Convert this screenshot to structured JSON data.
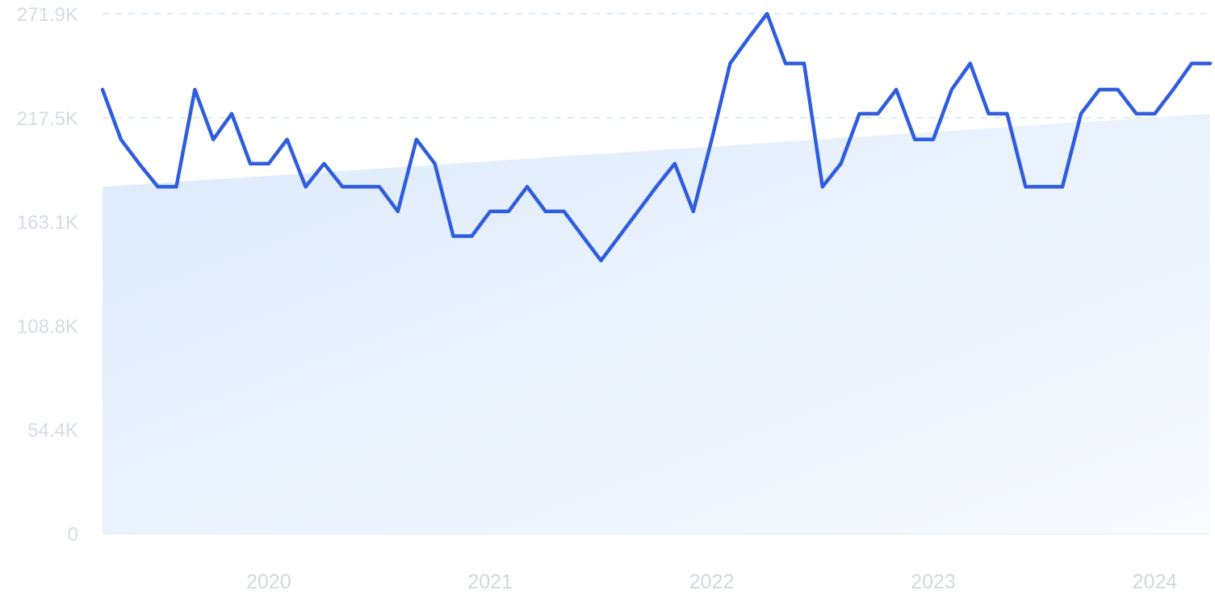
{
  "chart_data": {
    "type": "line",
    "ylim": [
      0,
      271900
    ],
    "y_ticks": [
      {
        "value": 0,
        "label": "0"
      },
      {
        "value": 54400,
        "label": "54.4K"
      },
      {
        "value": 108800,
        "label": "108.8K"
      },
      {
        "value": 163100,
        "label": "163.1K"
      },
      {
        "value": 217500,
        "label": "217.5K"
      },
      {
        "value": 271900,
        "label": "271.9K"
      }
    ],
    "x_ticks": [
      {
        "value": 2020.0,
        "label": "2020"
      },
      {
        "value": 2021.0,
        "label": "2021"
      },
      {
        "value": 2022.0,
        "label": "2022"
      },
      {
        "value": 2023.0,
        "label": "2023"
      },
      {
        "value": 2024.0,
        "label": "2024"
      }
    ],
    "xlim": [
      2019.25,
      2024.25
    ],
    "grid": true,
    "series": [
      {
        "x": [
          2019.25,
          2019.333,
          2019.417,
          2019.5,
          2019.583,
          2019.667,
          2019.75,
          2019.833,
          2019.917,
          2020.0,
          2020.083,
          2020.167,
          2020.25,
          2020.333,
          2020.417,
          2020.5,
          2020.583,
          2020.667,
          2020.75,
          2020.833,
          2020.917,
          2021.0,
          2021.083,
          2021.167,
          2021.25,
          2021.333,
          2021.417,
          2021.5,
          2021.583,
          2021.667,
          2021.75,
          2021.833,
          2021.917,
          2022.0,
          2022.083,
          2022.167,
          2022.25,
          2022.333,
          2022.417,
          2022.5,
          2022.583,
          2022.667,
          2022.75,
          2022.833,
          2022.917,
          2023.0,
          2023.083,
          2023.167,
          2023.25,
          2023.333,
          2023.417,
          2023.5,
          2023.583,
          2023.667,
          2023.75,
          2023.833,
          2023.917,
          2024.0,
          2024.083,
          2024.167,
          2024.25
        ],
        "values": [
          232200,
          206100,
          193200,
          181400,
          181400,
          232200,
          206100,
          219600,
          193500,
          193500,
          206100,
          181400,
          193500,
          181400,
          181400,
          181400,
          168500,
          206100,
          193500,
          155600,
          155600,
          168500,
          168500,
          181400,
          168500,
          168500,
          155600,
          142800,
          155600,
          168500,
          181400,
          193500,
          168500,
          206100,
          245900,
          259300,
          271900,
          245900,
          245900,
          181400,
          193500,
          219600,
          219600,
          232200,
          206100,
          206100,
          232200,
          245900,
          219600,
          219600,
          181400,
          181400,
          181400,
          219600,
          232200,
          232200,
          219600,
          219600,
          232200,
          245900,
          245900
        ],
        "color": "#2f5ddd"
      }
    ],
    "trend": {
      "start": [
        2019.25,
        181400
      ],
      "end": [
        2024.25,
        219600
      ]
    }
  },
  "colors": {
    "line": "#2f5ddd",
    "area_start": "#ddeafb",
    "area_end": "#f8fbff",
    "grid": "#c9dff5",
    "tick_text": "#d2d7df"
  }
}
